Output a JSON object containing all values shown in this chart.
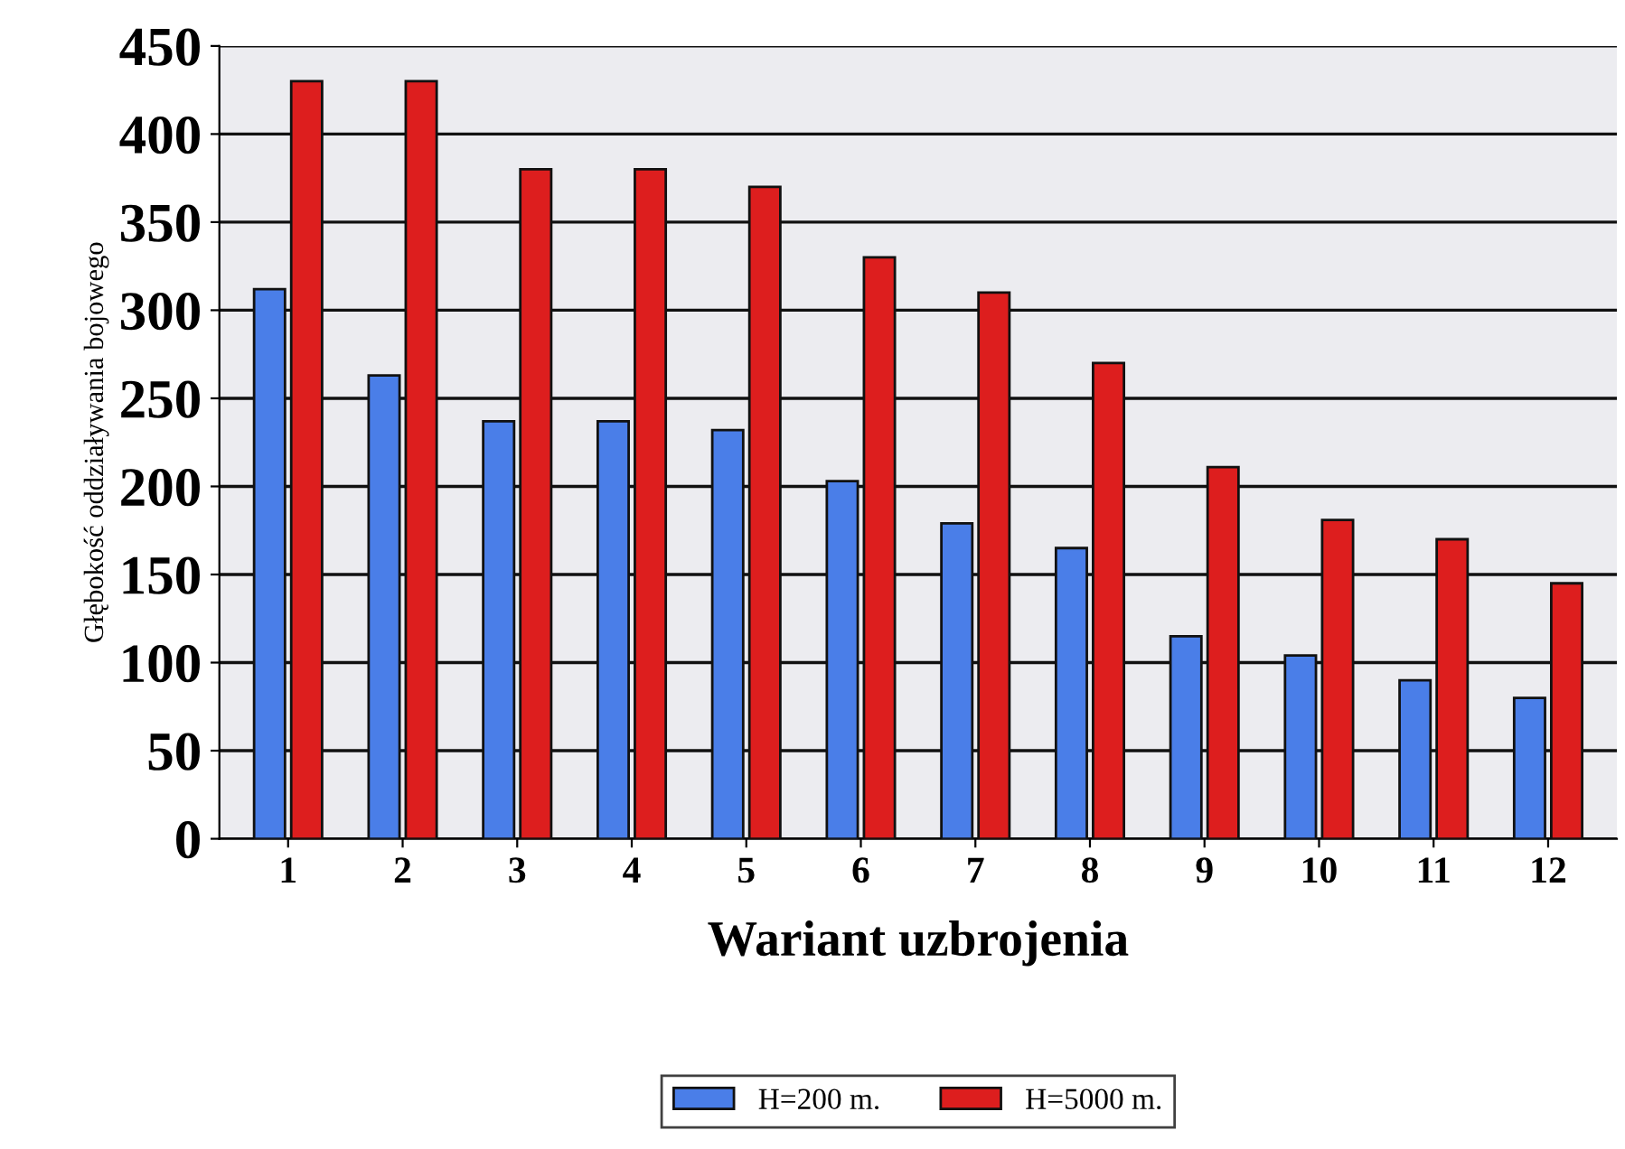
{
  "chart_data": {
    "type": "bar",
    "xlabel": "Wariant uzbrojenia",
    "ylabel": "Głębokość oddziaływania bojowego",
    "categories": [
      "1",
      "2",
      "3",
      "4",
      "5",
      "6",
      "7",
      "8",
      "9",
      "10",
      "11",
      "12"
    ],
    "series": [
      {
        "name": "H=200 m.",
        "color": "#4a7ee8",
        "values": [
          312,
          263,
          237,
          237,
          232,
          203,
          179,
          165,
          115,
          104,
          90,
          80
        ]
      },
      {
        "name": "H=5000 m.",
        "color": "#dd1e1e",
        "values": [
          430,
          430,
          380,
          380,
          370,
          330,
          310,
          270,
          211,
          181,
          170,
          145
        ]
      }
    ],
    "ylim": [
      0,
      450
    ],
    "yticks": [
      0,
      50,
      100,
      150,
      200,
      250,
      300,
      350,
      400,
      450
    ],
    "grid": "y",
    "legend": "bottom"
  }
}
